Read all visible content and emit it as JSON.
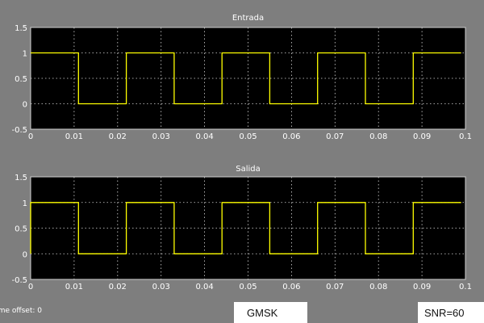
{
  "footer": {
    "time_offset_label": "Time offset:",
    "time_offset_value": "0",
    "modulation": "GMSK",
    "snr": "SNR=60"
  },
  "colors": {
    "background": "#7e7e7e",
    "axes": "#000000",
    "trace": "#ffff00",
    "text": "#ffffff"
  },
  "chart_data": [
    {
      "type": "line",
      "title": "Entrada",
      "xlim": [
        0,
        0.1
      ],
      "ylim": [
        -0.5,
        1.5
      ],
      "xticks": [
        "0",
        "0.01",
        "0.02",
        "0.03",
        "0.04",
        "0.05",
        "0.06",
        "0.07",
        "0.08",
        "0.09",
        "0.1"
      ],
      "yticks": [
        "-0.5",
        "0",
        "0.5",
        "1",
        "1.5"
      ],
      "grid": true,
      "series": [
        {
          "x": [
            0,
            0.011,
            0.011,
            0.022,
            0.022,
            0.033,
            0.033,
            0.044,
            0.044,
            0.055,
            0.055,
            0.066,
            0.066,
            0.077,
            0.077,
            0.088,
            0.088,
            0.099
          ],
          "y": [
            1,
            1,
            0,
            0,
            1,
            1,
            0,
            0,
            1,
            1,
            0,
            0,
            1,
            1,
            0,
            0,
            1,
            1
          ]
        }
      ]
    },
    {
      "type": "line",
      "title": "Salida",
      "xlim": [
        0,
        0.1
      ],
      "ylim": [
        -0.5,
        1.5
      ],
      "xticks": [
        "0",
        "0.01",
        "0.02",
        "0.03",
        "0.04",
        "0.05",
        "0.06",
        "0.07",
        "0.08",
        "0.09",
        "0.1"
      ],
      "yticks": [
        "-0.5",
        "0",
        "0.5",
        "1",
        "1.5"
      ],
      "grid": true,
      "series": [
        {
          "x": [
            0,
            0,
            0.011,
            0.011,
            0.022,
            0.022,
            0.033,
            0.033,
            0.044,
            0.044,
            0.055,
            0.055,
            0.066,
            0.066,
            0.077,
            0.077,
            0.088,
            0.088,
            0.099
          ],
          "y": [
            0,
            1,
            1,
            0,
            0,
            1,
            1,
            0,
            0,
            1,
            1,
            0,
            0,
            1,
            1,
            0,
            0,
            1,
            1
          ]
        }
      ]
    }
  ]
}
